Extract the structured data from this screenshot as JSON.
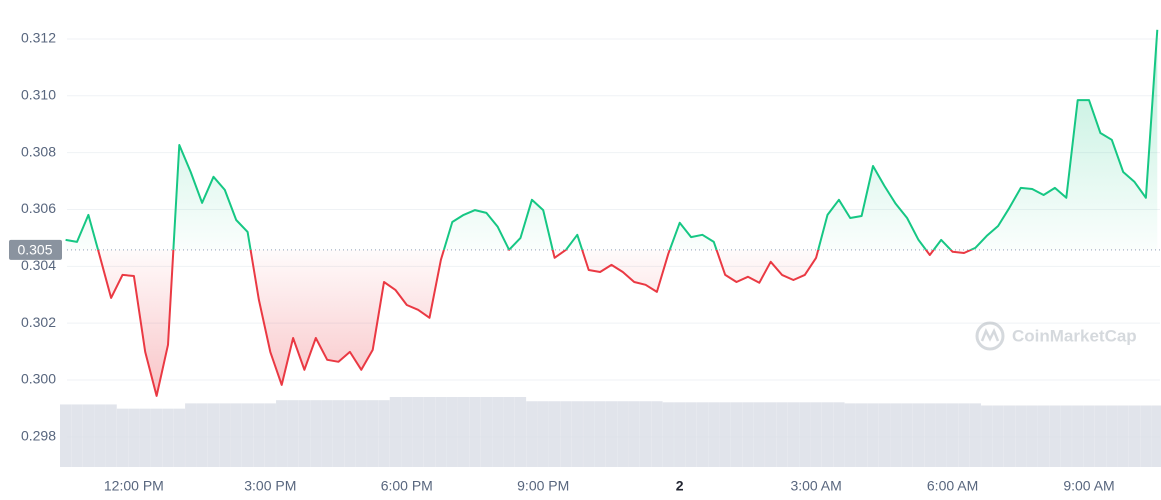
{
  "chart_data": {
    "type": "line",
    "watermark": "CoinMarketCap",
    "x": [
      10.5,
      10.75,
      11,
      11.25,
      11.5,
      11.75,
      12,
      12.25,
      12.5,
      12.75,
      13,
      13.25,
      13.5,
      13.75,
      14,
      14.25,
      14.5,
      14.75,
      15,
      15.25,
      15.5,
      15.75,
      16,
      16.25,
      16.5,
      16.75,
      17,
      17.25,
      17.5,
      17.75,
      18,
      18.25,
      18.5,
      18.75,
      19,
      19.25,
      19.5,
      19.75,
      20,
      20.25,
      20.5,
      20.75,
      21,
      21.25,
      21.5,
      21.75,
      22,
      22.25,
      22.5,
      22.75,
      23,
      23.25,
      23.5,
      23.75,
      24,
      24.25,
      24.5,
      24.75,
      25,
      25.25,
      25.5,
      25.75,
      26,
      26.25,
      26.5,
      26.75,
      27,
      27.25,
      27.5,
      27.75,
      28,
      28.25,
      28.5,
      28.75,
      29,
      29.25,
      29.5,
      29.75,
      30,
      30.25,
      30.5,
      30.75,
      31,
      31.25,
      31.5,
      31.75,
      32,
      32.25,
      32.5,
      32.75,
      33,
      33.25,
      33.5,
      33.75,
      34,
      34.25,
      34.5
    ],
    "values": [
      0.30493,
      0.30486,
      0.30581,
      0.30437,
      0.30289,
      0.3037,
      0.30366,
      0.30099,
      0.29944,
      0.30124,
      0.30827,
      0.30732,
      0.30623,
      0.30715,
      0.30669,
      0.30563,
      0.30521,
      0.30282,
      0.30099,
      0.29983,
      0.30148,
      0.30036,
      0.30148,
      0.30071,
      0.30064,
      0.30099,
      0.30036,
      0.30106,
      0.30345,
      0.30317,
      0.30264,
      0.30247,
      0.30219,
      0.30423,
      0.30556,
      0.30581,
      0.30598,
      0.30588,
      0.30539,
      0.30458,
      0.305,
      0.30634,
      0.30598,
      0.3043,
      0.30458,
      0.30511,
      0.30387,
      0.3038,
      0.30405,
      0.3038,
      0.30345,
      0.30335,
      0.3031,
      0.30444,
      0.30553,
      0.30503,
      0.30511,
      0.30486,
      0.3037,
      0.30345,
      0.30363,
      0.30342,
      0.30416,
      0.3037,
      0.30352,
      0.3037,
      0.3043,
      0.30581,
      0.30634,
      0.3057,
      0.30577,
      0.30753,
      0.30683,
      0.3062,
      0.3057,
      0.30493,
      0.3044,
      0.30493,
      0.30451,
      0.30447,
      0.30465,
      0.30507,
      0.30542,
      0.30606,
      0.30676,
      0.30672,
      0.30651,
      0.30676,
      0.30641,
      0.30985,
      0.30985,
      0.30869,
      0.30845,
      0.30732,
      0.30697,
      0.30641,
      0.31232
    ],
    "volume": [
      59,
      59,
      59,
      59,
      59,
      55,
      55,
      55,
      55,
      55,
      55,
      60,
      60,
      60,
      60,
      60,
      60,
      60,
      60,
      63,
      63,
      63,
      63,
      63,
      63,
      63,
      63,
      63,
      63,
      66,
      66,
      66,
      66,
      66,
      66,
      66,
      66,
      66,
      66,
      66,
      66,
      62,
      62,
      62,
      62,
      62,
      62,
      62,
      62,
      62,
      62,
      62,
      62,
      61,
      61,
      61,
      61,
      61,
      61,
      61,
      61,
      61,
      61,
      61,
      61,
      61,
      61,
      61,
      61,
      60,
      60,
      60,
      60,
      60,
      60,
      60,
      60,
      60,
      60,
      60,
      60,
      58,
      58,
      58,
      58,
      58,
      58,
      58,
      58,
      58,
      58,
      58,
      58,
      58,
      58,
      58,
      58
    ],
    "baseline": {
      "value": 0.30458,
      "label": "0.305"
    },
    "up_color": "#16c784",
    "down_color": "#ea3943",
    "volume_color": "#d9dde6",
    "xlim": [
      10.53,
      34.56
    ],
    "ylim": [
      0.29694,
      0.31337
    ],
    "xticks": [
      {
        "value": 12,
        "label": "12:00 PM"
      },
      {
        "value": 15,
        "label": "3:00 PM"
      },
      {
        "value": 18,
        "label": "6:00 PM"
      },
      {
        "value": 21,
        "label": "9:00 PM"
      },
      {
        "value": 24,
        "label": "2"
      },
      {
        "value": 27,
        "label": "3:00 AM"
      },
      {
        "value": 30,
        "label": "6:00 AM"
      },
      {
        "value": 33,
        "label": "9:00 AM"
      }
    ],
    "yticks": [
      0.298,
      {
        "value": 0.3,
        "label": "0.300"
      },
      0.302,
      0.304,
      0.306,
      0.308,
      {
        "value": 0.31,
        "label": "0.310"
      },
      0.312
    ],
    "grid": true
  }
}
